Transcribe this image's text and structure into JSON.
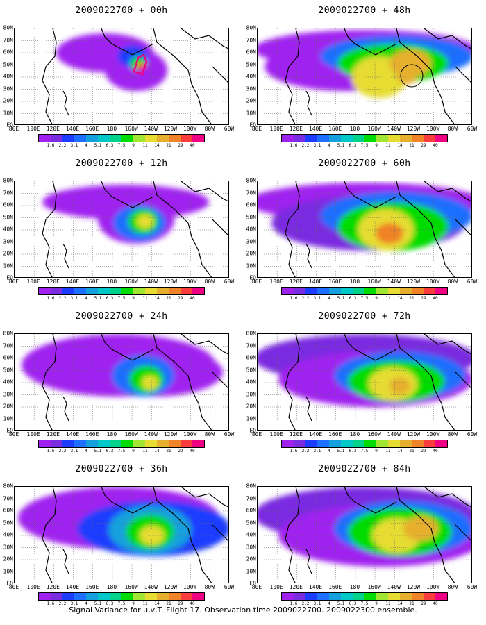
{
  "footer": "Signal Variance for u,v,T. Flight 17. Observation time 2009022700. 2009022300 ensemble.",
  "lat_labels": [
    "80N",
    "70N",
    "60N",
    "50N",
    "40N",
    "30N",
    "20N",
    "10N",
    "EQ"
  ],
  "lon_labels": [
    "80E",
    "100E",
    "120E",
    "140E",
    "160E",
    "180",
    "160W",
    "140W",
    "120W",
    "100W",
    "80W",
    "60W"
  ],
  "colorbar": {
    "levels": [
      "1.6",
      "2.2",
      "3.1",
      "4",
      "5.1",
      "6.3",
      "7.5",
      "9",
      "11",
      "14",
      "21",
      "29",
      "40"
    ],
    "colors": [
      "#a020f0",
      "#7a2ce0",
      "#1c3cff",
      "#1e6eff",
      "#14a0dc",
      "#00c8c8",
      "#00d28c",
      "#00dc00",
      "#a0e632",
      "#e6dc32",
      "#e6af2d",
      "#f08228",
      "#fa3c3c",
      "#f00082"
    ]
  },
  "panels": [
    {
      "title": "2009022700 + 00h",
      "lead": "00h"
    },
    {
      "title": "2009022700 + 48h",
      "lead": "48h"
    },
    {
      "title": "2009022700 + 12h",
      "lead": "12h"
    },
    {
      "title": "2009022700 + 60h",
      "lead": "60h"
    },
    {
      "title": "2009022700 + 24h",
      "lead": "24h"
    },
    {
      "title": "2009022700 + 72h",
      "lead": "72h"
    },
    {
      "title": "2009022700 + 36h",
      "lead": "36h"
    },
    {
      "title": "2009022700 + 84h",
      "lead": "84h"
    }
  ]
}
